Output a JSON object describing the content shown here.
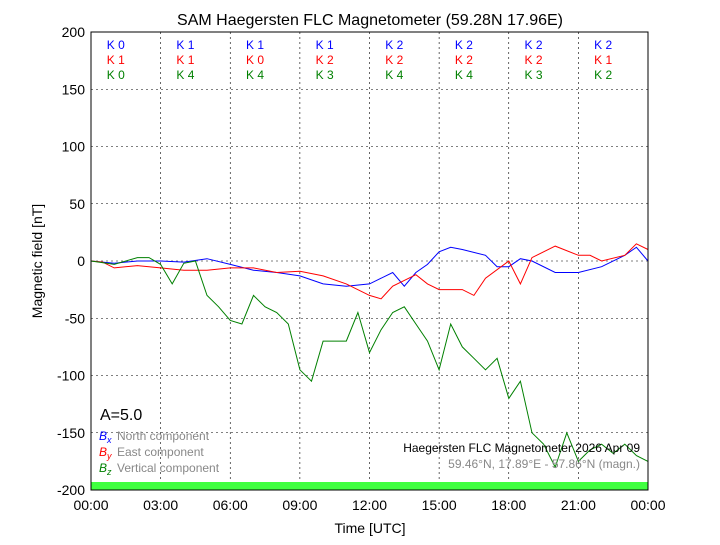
{
  "chart_data": {
    "type": "line",
    "title": "SAM Haegersten FLC Magnetometer (59.28N 17.96E)",
    "xlabel": "Time [UTC]",
    "ylabel": "Magnetic field [nT]",
    "xlim": [
      0,
      24
    ],
    "ylim": [
      -200,
      200
    ],
    "xticks": [
      "00:00",
      "03:00",
      "06:00",
      "09:00",
      "12:00",
      "15:00",
      "18:00",
      "21:00",
      "00:00"
    ],
    "yticks": [
      200,
      150,
      100,
      50,
      0,
      -50,
      -100,
      -150,
      -200
    ],
    "grid": true,
    "activity": "A=5.0",
    "station_line": "Haegersten FLC Magnetometer 2026 Apr 09",
    "coords_line": "59.46°N, 17.89°E - 57.86°N (magn.)",
    "k_indices": [
      {
        "color": "#0000ff",
        "values": [
          "K 0",
          "K 1",
          "K 1",
          "K 1",
          "K 2",
          "K 2",
          "K 2",
          "K 2"
        ]
      },
      {
        "color": "#ff0000",
        "values": [
          "K 1",
          "K 1",
          "K 0",
          "K 2",
          "K 2",
          "K 2",
          "K 2",
          "K 1"
        ]
      },
      {
        "color": "#008000",
        "values": [
          "K 0",
          "K 4",
          "K 4",
          "K 3",
          "K 4",
          "K 4",
          "K 3",
          "K 2"
        ]
      }
    ],
    "band_color": "#40ff40",
    "series": [
      {
        "name": "North component",
        "symbol": "B",
        "sub": "x",
        "color": "#0000ff",
        "x": [
          0,
          1,
          2,
          3,
          4,
          5,
          6,
          7,
          8,
          9,
          10,
          11,
          12,
          12.5,
          13,
          13.5,
          14,
          14.5,
          15,
          15.5,
          16,
          17,
          17.5,
          18,
          18.5,
          19,
          20,
          21,
          22,
          23,
          23.5,
          24
        ],
        "y": [
          0,
          -2,
          0,
          0,
          -1,
          2,
          -3,
          -8,
          -10,
          -13,
          -20,
          -22,
          -20,
          -15,
          -10,
          -22,
          -10,
          -3,
          8,
          12,
          10,
          5,
          -5,
          -5,
          2,
          0,
          -10,
          -10,
          -5,
          5,
          12,
          0
        ]
      },
      {
        "name": "East component",
        "symbol": "B",
        "sub": "y",
        "color": "#ff0000",
        "x": [
          0,
          0.5,
          1,
          2,
          3,
          4,
          5,
          6,
          7,
          8,
          9,
          10,
          11,
          12,
          12.5,
          13,
          14,
          14.5,
          15,
          16,
          16.5,
          17,
          18,
          18.5,
          19,
          20,
          21,
          21.5,
          22,
          23,
          23.5,
          24
        ],
        "y": [
          0,
          -1,
          -6,
          -4,
          -6,
          -8,
          -8,
          -6,
          -6,
          -10,
          -9,
          -13,
          -20,
          -30,
          -33,
          -22,
          -12,
          -20,
          -25,
          -25,
          -30,
          -15,
          0,
          -20,
          3,
          13,
          5,
          5,
          0,
          5,
          15,
          10
        ]
      },
      {
        "name": "Vertical component",
        "symbol": "B",
        "sub": "z",
        "color": "#008000",
        "x": [
          0,
          1,
          2,
          2.5,
          3,
          3.5,
          4,
          4.5,
          5,
          5.5,
          6,
          6.5,
          7,
          7.5,
          8,
          8.5,
          9,
          9.5,
          10,
          11,
          11.5,
          12,
          12.5,
          13,
          13.5,
          14,
          14.5,
          15,
          15.5,
          16,
          16.5,
          17,
          17.5,
          18,
          18.5,
          19,
          19.5,
          20,
          20.5,
          21,
          21.5,
          22,
          22.5,
          23,
          23.5,
          24
        ],
        "y": [
          0,
          -3,
          3,
          3,
          -3,
          -20,
          -2,
          0,
          -30,
          -40,
          -52,
          -55,
          -30,
          -40,
          -45,
          -55,
          -95,
          -105,
          -70,
          -70,
          -45,
          -80,
          -60,
          -45,
          -40,
          -55,
          -70,
          -95,
          -55,
          -75,
          -85,
          -95,
          -85,
          -120,
          -105,
          -150,
          -160,
          -180,
          -150,
          -175,
          -165,
          -160,
          -168,
          -160,
          -170,
          -175
        ]
      }
    ]
  }
}
